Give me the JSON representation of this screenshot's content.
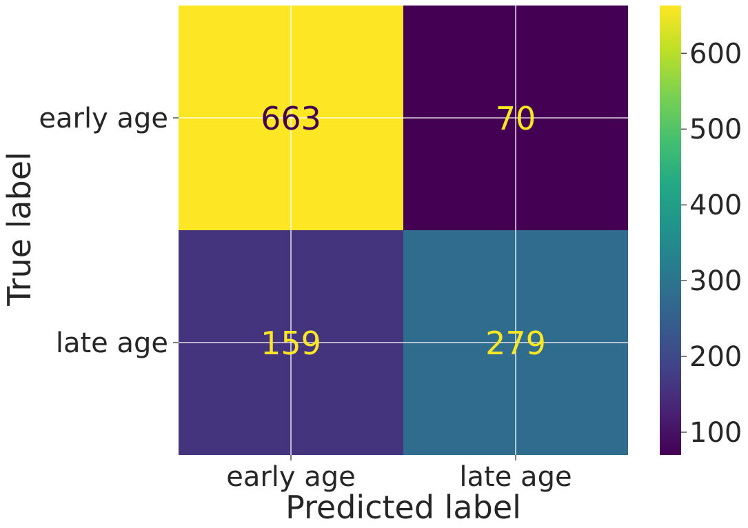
{
  "chart_data": {
    "type": "heatmap",
    "title": "",
    "xlabel": "Predicted label",
    "ylabel": "True label",
    "x_categories": [
      "early age",
      "late age"
    ],
    "y_categories": [
      "early age",
      "late age"
    ],
    "values": [
      [
        663,
        70
      ],
      [
        159,
        279
      ]
    ],
    "colormap": "viridis",
    "colorbar": {
      "min": 70,
      "max": 663,
      "ticks": [
        100,
        200,
        300,
        400,
        500,
        600
      ],
      "tick_labels": [
        "100",
        "200",
        "300",
        "400",
        "500",
        "600"
      ]
    },
    "grid": true,
    "text_color_low": "#fde725",
    "text_color_high": "#440154"
  }
}
